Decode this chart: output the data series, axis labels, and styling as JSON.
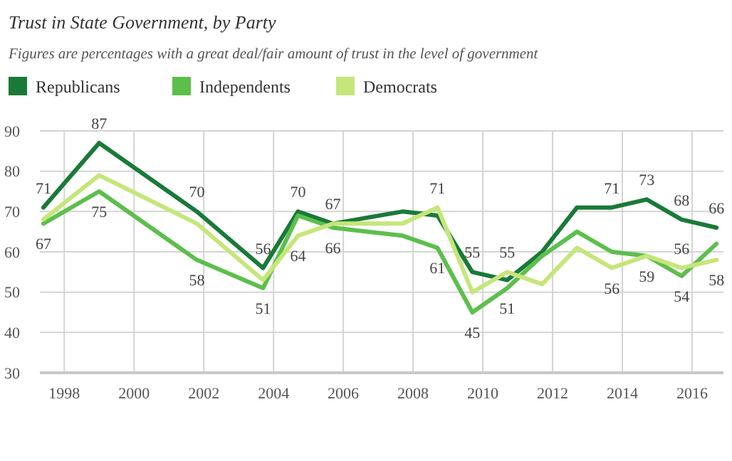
{
  "chart_data": {
    "type": "line",
    "title": "Trust in State Government, by Party",
    "subtitle": "Figures are percentages with a great deal/fair amount of trust in the level of government",
    "x": [
      1997.4,
      1999.0,
      2001.8,
      2003.7,
      2004.7,
      2005.7,
      2007.7,
      2008.7,
      2009.7,
      2010.7,
      2011.7,
      2012.7,
      2013.7,
      2014.7,
      2015.7,
      2016.7
    ],
    "series": [
      {
        "name": "Republicans",
        "color": "#197a38",
        "values": [
          71,
          87,
          70,
          56,
          70,
          67,
          70,
          69,
          55,
          53,
          60,
          71,
          71,
          73,
          68,
          66
        ],
        "value_labels": [
          "71",
          "87",
          "70",
          "56",
          "70",
          "67",
          null,
          null,
          "55",
          null,
          null,
          null,
          "71",
          "73",
          "68",
          "66"
        ]
      },
      {
        "name": "Independents",
        "color": "#5cbf4c",
        "values": [
          67,
          75,
          58,
          51,
          69,
          66,
          64,
          61,
          45,
          51,
          59,
          65,
          60,
          59,
          54,
          62
        ],
        "value_labels": [
          "67",
          "75",
          "58",
          "51",
          null,
          "66",
          null,
          "61",
          "45",
          "51",
          null,
          null,
          null,
          null,
          "54",
          null
        ]
      },
      {
        "name": "Democrats",
        "color": "#c5e67a",
        "values": [
          68,
          79,
          67,
          53,
          64,
          67,
          67,
          71,
          50,
          55,
          52,
          61,
          56,
          59,
          56,
          58
        ],
        "value_labels": [
          null,
          null,
          null,
          null,
          "64",
          null,
          null,
          "71",
          null,
          "55",
          null,
          null,
          "56",
          "59",
          "56",
          "58"
        ]
      }
    ],
    "xlim": [
      1997.3,
      2016.9
    ],
    "xticks": [
      1998,
      2000,
      2002,
      2004,
      2006,
      2008,
      2010,
      2012,
      2014,
      2016
    ],
    "ylim": [
      30,
      90
    ],
    "yticks": [
      30,
      40,
      50,
      60,
      70,
      80,
      90
    ],
    "grid": true,
    "legend": "top left",
    "marker": "none",
    "line_style": "solid"
  }
}
